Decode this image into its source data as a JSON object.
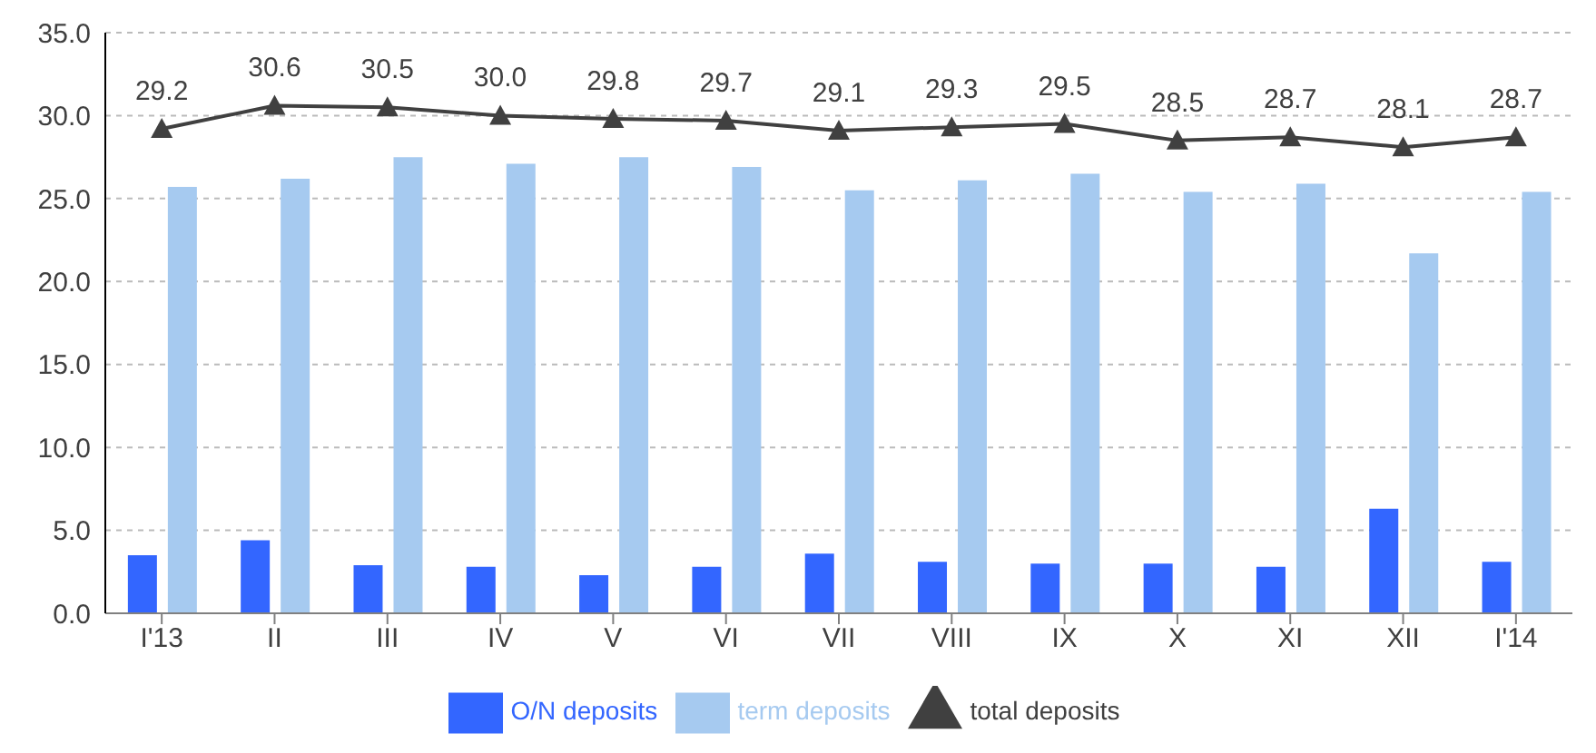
{
  "chart_data": {
    "type": "bar",
    "categories": [
      "I'13",
      "II",
      "III",
      "IV",
      "V",
      "VI",
      "VII",
      "VIII",
      "IX",
      "X",
      "XI",
      "XII",
      "I'14"
    ],
    "series": [
      {
        "name": "O/N deposits",
        "color": "#3366ff",
        "values": [
          3.5,
          4.4,
          2.9,
          2.8,
          2.3,
          2.8,
          3.6,
          3.1,
          3.0,
          3.0,
          2.8,
          6.3,
          3.1
        ]
      },
      {
        "name": "term deposits",
        "color": "#a6caf0",
        "values": [
          25.7,
          26.2,
          27.5,
          27.1,
          27.5,
          26.9,
          25.5,
          26.1,
          26.5,
          25.4,
          25.9,
          21.7,
          25.4
        ]
      },
      {
        "name": "total deposits",
        "type": "line",
        "color": "#404040",
        "marker": "triangle",
        "values": [
          29.2,
          30.6,
          30.5,
          30.0,
          29.8,
          29.7,
          29.1,
          29.3,
          29.5,
          28.5,
          28.7,
          28.1,
          28.7
        ],
        "value_labels": [
          "29.2",
          "30.6",
          "30.5",
          "30.0",
          "29.8",
          "29.7",
          "29.1",
          "29.3",
          "29.5",
          "28.5",
          "28.7",
          "28.1",
          "28.7"
        ]
      }
    ],
    "ylim": [
      0,
      35
    ],
    "yticks": [
      {
        "value": 0,
        "label": "0.0"
      },
      {
        "value": 5,
        "label": "5.0"
      },
      {
        "value": 10,
        "label": "10.0"
      },
      {
        "value": 15,
        "label": "15.0"
      },
      {
        "value": 20,
        "label": "20.0"
      },
      {
        "value": 25,
        "label": "25.0"
      },
      {
        "value": 30,
        "label": "30.0"
      },
      {
        "value": 35,
        "label": "35.0"
      }
    ],
    "grid": "y",
    "legend": "bottom"
  }
}
